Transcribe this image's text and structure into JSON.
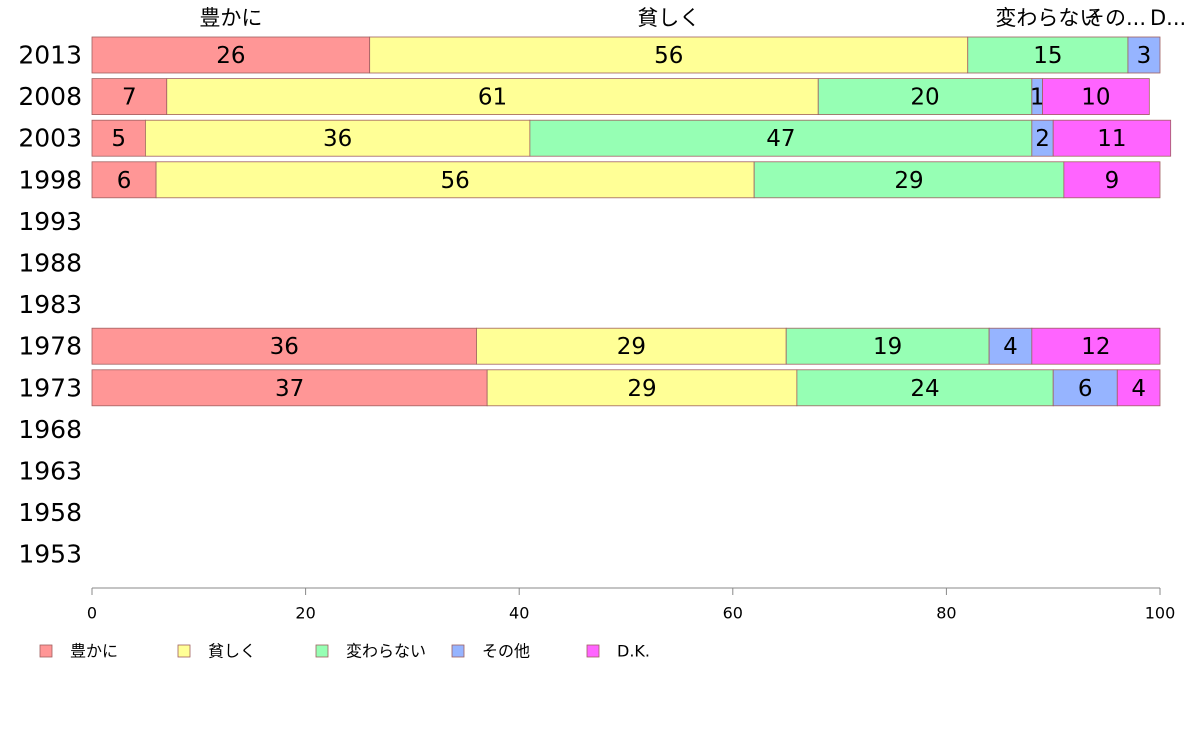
{
  "colors": {
    "豊かに": "#ff9696",
    "貧しく": "#ffff96",
    "変わらない": "#96ffb4",
    "その他": "#96b4ff",
    "D.K.": "#ff64ff"
  },
  "chart_data": {
    "type": "bar",
    "orientation": "horizontal",
    "stacked": true,
    "title": "",
    "xlabel": "",
    "ylabel": "",
    "xlim": [
      0,
      100
    ],
    "x_ticks": [
      "0",
      "20",
      "40",
      "60",
      "80",
      "100"
    ],
    "categories": [
      "2013",
      "2008",
      "2003",
      "1998",
      "1993",
      "1988",
      "1983",
      "1978",
      "1973",
      "1968",
      "1963",
      "1958",
      "1953"
    ],
    "series": [
      {
        "name": "豊かに",
        "values": [
          26,
          7,
          5,
          6,
          null,
          null,
          null,
          36,
          37,
          null,
          null,
          null,
          null
        ]
      },
      {
        "name": "貧しく",
        "values": [
          56,
          61,
          36,
          56,
          null,
          null,
          null,
          29,
          29,
          null,
          null,
          null,
          null
        ]
      },
      {
        "name": "変わらない",
        "values": [
          15,
          20,
          47,
          29,
          null,
          null,
          null,
          19,
          24,
          null,
          null,
          null,
          null
        ]
      },
      {
        "name": "その他",
        "values": [
          3,
          1,
          2,
          null,
          null,
          null,
          null,
          4,
          6,
          null,
          null,
          null,
          null
        ]
      },
      {
        "name": "D.K.",
        "values": [
          null,
          10,
          11,
          9,
          null,
          null,
          null,
          12,
          4,
          null,
          null,
          null,
          null
        ]
      }
    ],
    "top_labels": [
      "豊かに",
      "貧しく",
      "変わらない",
      "その...",
      "D..."
    ],
    "legend": {
      "position": "bottom",
      "entries": [
        "豊かに",
        "貧しく",
        "変わらない",
        "その他",
        "D.K."
      ]
    }
  }
}
